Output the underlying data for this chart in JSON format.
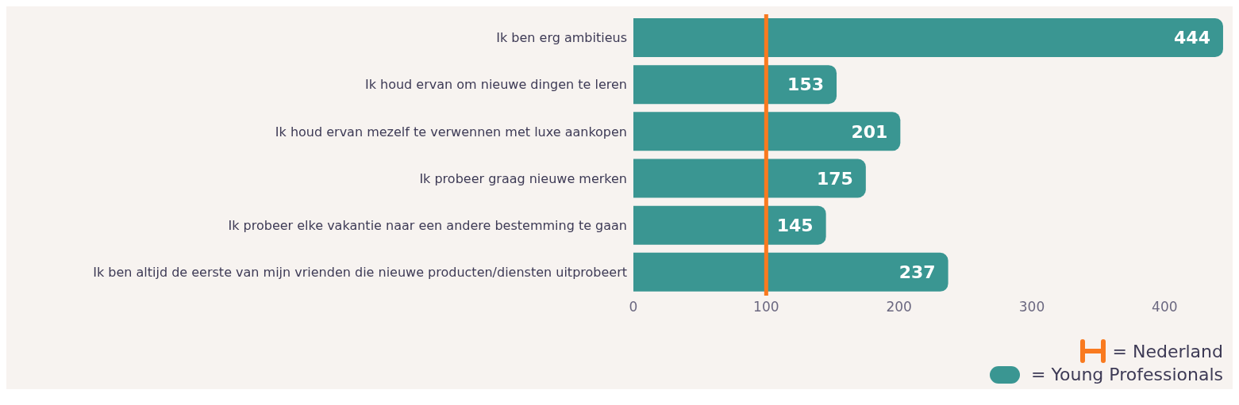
{
  "chart_data": {
    "type": "bar",
    "orientation": "horizontal",
    "categories": [
      "Ik ben erg ambitieus",
      "Ik houd ervan om nieuwe dingen te leren",
      "Ik houd ervan mezelf te verwennen met luxe aankopen",
      "Ik probeer graag nieuwe merken",
      "Ik probeer elke vakantie naar een andere bestemming te gaan",
      "Ik ben altijd de eerste van mijn vrienden die nieuwe producten/diensten uitprobeert"
    ],
    "series": [
      {
        "name": "= Young Professionals",
        "color": "#3a9692",
        "values": [
          444,
          153,
          201,
          175,
          145,
          237
        ]
      }
    ],
    "xlim": [
      0,
      450
    ],
    "xticks": [
      0,
      100,
      200,
      300,
      400
    ],
    "ref_lines": [
      {
        "axis": "x",
        "value": 100,
        "label": "= Nederland",
        "color": "#f97a1f"
      }
    ],
    "data_labels": true,
    "grid": false,
    "legend": "bottom right"
  }
}
